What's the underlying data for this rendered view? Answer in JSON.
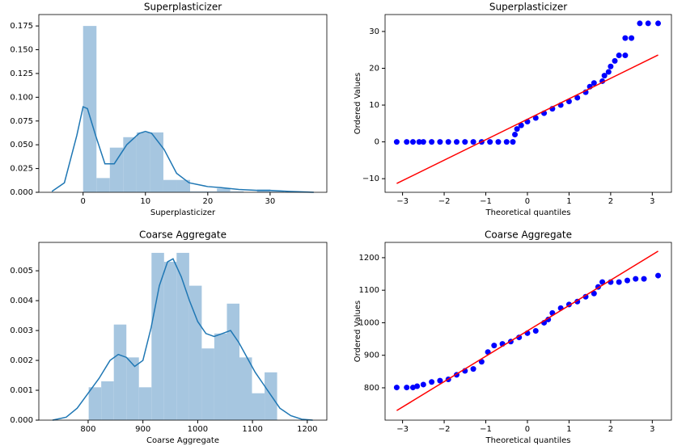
{
  "chart_data": [
    {
      "type": "histogram",
      "title": "Superplasticizer",
      "xlabel": "Superplasticizer",
      "bins": [
        0,
        2.15,
        4.29,
        6.44,
        8.59,
        10.73,
        12.88,
        15.03,
        17.17,
        19.32,
        21.47,
        23.61,
        25.76,
        27.91,
        30.05,
        32.2
      ],
      "values": [
        0.175,
        0.015,
        0.047,
        0.058,
        0.063,
        0.063,
        0.013,
        0.013,
        0.001,
        0.001,
        0.004,
        0.001,
        0.0,
        0.003,
        0.001
      ],
      "color": "#a6c6e0",
      "line": {
        "x": [
          -5,
          -3,
          -1,
          0,
          0.7,
          2,
          3.5,
          5,
          7,
          9,
          10,
          11,
          13,
          15,
          17,
          20,
          22,
          25,
          28,
          30,
          33,
          37
        ],
        "values": [
          0.001,
          0.01,
          0.06,
          0.09,
          0.088,
          0.06,
          0.03,
          0.03,
          0.05,
          0.062,
          0.064,
          0.062,
          0.045,
          0.02,
          0.01,
          0.006,
          0.005,
          0.003,
          0.002,
          0.002,
          0.001,
          0.0
        ],
        "color": "#1f77b4"
      },
      "xlim": [
        -7.1,
        39.1
      ],
      "ylim": [
        0,
        0.187
      ],
      "xticks": [
        0,
        10,
        20,
        30
      ],
      "yticks": [
        {
          "value": 0,
          "label": "0.000"
        },
        0.025,
        {
          "value": 0.05,
          "label": "0.050"
        },
        0.075,
        {
          "value": 0.1,
          "label": "0.100"
        },
        0.125,
        {
          "value": 0.15,
          "label": "0.150"
        },
        0.175
      ]
    },
    {
      "type": "scatter",
      "title": "Superplasticizer",
      "xlabel": "Theoretical quantiles",
      "ylabel": "Ordered Values",
      "x": [
        -3.14,
        -2.9,
        -2.75,
        -2.6,
        -2.5,
        -2.3,
        -2.1,
        -1.9,
        -1.7,
        -1.5,
        -1.3,
        -1.1,
        -0.9,
        -0.7,
        -0.5,
        -0.35,
        -0.3,
        -0.25,
        -0.15,
        0,
        0.2,
        0.4,
        0.6,
        0.8,
        1.0,
        1.2,
        1.4,
        1.5,
        1.6,
        1.8,
        1.85,
        1.95,
        2.0,
        2.1,
        2.2,
        2.35,
        2.35,
        2.5,
        2.7,
        2.9,
        3.14
      ],
      "values": [
        0,
        0,
        0,
        0,
        0,
        0,
        0,
        0,
        0,
        0,
        0,
        0,
        0,
        0,
        0,
        0,
        2,
        3.5,
        4.5,
        5.5,
        6.5,
        7.8,
        9,
        10,
        11,
        12,
        13.5,
        15,
        16,
        16.5,
        18,
        19,
        20.5,
        22,
        23.5,
        23.5,
        28.2,
        28.2,
        32.2,
        32.2,
        32.2
      ],
      "color": "#0000ff",
      "fit_line": {
        "x": [
          -3.14,
          3.14
        ],
        "values": [
          -11.3,
          23.6
        ],
        "color": "#ff0000"
      },
      "xlim": [
        -3.42,
        3.46
      ],
      "ylim": [
        -13.7,
        34.6
      ],
      "xticks": [
        {
          "value": -3,
          "label": "−3"
        },
        {
          "value": -2,
          "label": "−2"
        },
        {
          "value": -1,
          "label": "−1"
        },
        0,
        1,
        2,
        3
      ],
      "yticks": [
        {
          "value": -10,
          "label": "−10"
        },
        0,
        10,
        20,
        30
      ]
    },
    {
      "type": "histogram",
      "title": "Coarse Aggregate",
      "xlabel": "Coarse Aggregate",
      "bins": [
        801,
        823.9,
        846.9,
        869.8,
        892.7,
        915.7,
        938.6,
        961.5,
        984.5,
        1007.4,
        1030.3,
        1053.3,
        1076.2,
        1099.1,
        1122.1,
        1145
      ],
      "values": [
        0.0011,
        0.0013,
        0.0032,
        0.0021,
        0.0011,
        0.0056,
        0.0053,
        0.0056,
        0.0045,
        0.0024,
        0.0029,
        0.0039,
        0.0021,
        0.0009,
        0.0016
      ],
      "color": "#a6c6e0",
      "line": {
        "x": [
          735,
          760,
          780,
          800,
          820,
          840,
          855,
          870,
          885,
          900,
          915,
          930,
          945,
          955,
          970,
          985,
          1000,
          1015,
          1030,
          1045,
          1060,
          1075,
          1090,
          1105,
          1120,
          1135,
          1150,
          1170,
          1190,
          1210
        ],
        "values": [
          0.0,
          0.0001,
          0.0004,
          0.0009,
          0.0014,
          0.002,
          0.0022,
          0.0021,
          0.0018,
          0.002,
          0.0031,
          0.0045,
          0.0053,
          0.0054,
          0.0048,
          0.004,
          0.0033,
          0.0029,
          0.0028,
          0.0029,
          0.003,
          0.0026,
          0.0021,
          0.0016,
          0.0012,
          0.0008,
          0.0004,
          0.00015,
          3e-05,
          0.0
        ],
        "color": "#1f77b4"
      },
      "xlim": [
        710,
        1235.7
      ],
      "ylim": [
        0,
        0.00595
      ],
      "xticks": [
        800,
        900,
        1000,
        1100,
        1200
      ],
      "yticks": [
        {
          "value": 0,
          "label": "0.000"
        },
        0.001,
        0.002,
        0.003,
        0.004,
        0.005
      ]
    },
    {
      "type": "scatter",
      "title": "Coarse Aggregate",
      "xlabel": "Theoretical quantiles",
      "ylabel": "Ordered Values",
      "x": [
        -3.14,
        -2.9,
        -2.75,
        -2.65,
        -2.5,
        -2.3,
        -2.1,
        -1.9,
        -1.7,
        -1.5,
        -1.3,
        -1.1,
        -0.95,
        -0.8,
        -0.6,
        -0.4,
        -0.2,
        0,
        0.2,
        0.4,
        0.5,
        0.6,
        0.8,
        1.0,
        1.2,
        1.4,
        1.6,
        1.7,
        1.8,
        2.0,
        2.2,
        2.4,
        2.6,
        2.8,
        3.14
      ],
      "values": [
        801,
        801,
        801,
        805,
        810,
        818,
        822,
        826,
        840,
        852,
        858,
        880,
        910,
        930,
        935,
        942,
        955,
        968,
        975,
        1000,
        1010,
        1030,
        1045,
        1056,
        1065,
        1080,
        1090,
        1110,
        1125,
        1125,
        1125,
        1130,
        1135,
        1135,
        1145
      ],
      "color": "#0000ff",
      "fit_line": {
        "x": [
          -3.14,
          3.14
        ],
        "values": [
          730,
          1220
        ],
        "color": "#ff0000"
      },
      "xlim": [
        -3.42,
        3.46
      ],
      "ylim": [
        700.6,
        1247
      ],
      "xticks": [
        {
          "value": -3,
          "label": "−3"
        },
        {
          "value": -2,
          "label": "−2"
        },
        {
          "value": -1,
          "label": "−1"
        },
        0,
        1,
        2,
        3
      ],
      "yticks": [
        800,
        900,
        1000,
        1100,
        1200
      ]
    }
  ]
}
